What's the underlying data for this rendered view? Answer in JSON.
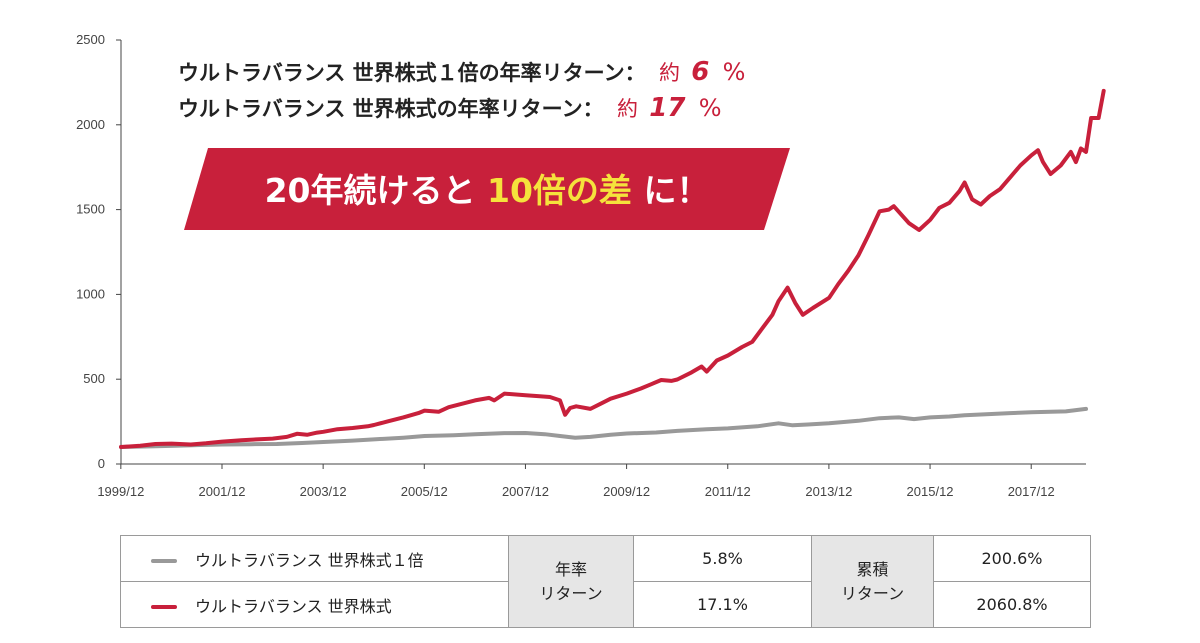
{
  "chart_data": {
    "type": "line",
    "x_ticks": [
      "1999/12",
      "2001/12",
      "2003/12",
      "2005/12",
      "2007/12",
      "2009/12",
      "2011/12",
      "2013/12",
      "2015/12",
      "2017/12"
    ],
    "y_ticks": [
      "0",
      "500",
      "1000",
      "1500",
      "2000",
      "2500"
    ],
    "ylim": [
      0,
      2500
    ],
    "xlim": [
      1999.92,
      2019.0
    ],
    "grid": false,
    "series": [
      {
        "name": "ウルトラバランス 世界株式１倍",
        "color": "#999999",
        "points": [
          [
            1999.92,
            100
          ],
          [
            2000.5,
            104
          ],
          [
            2001.0,
            108
          ],
          [
            2001.5,
            112
          ],
          [
            2001.92,
            115
          ],
          [
            2002.5,
            117
          ],
          [
            2003.0,
            118
          ],
          [
            2003.5,
            124
          ],
          [
            2003.92,
            130
          ],
          [
            2004.5,
            138
          ],
          [
            2004.92,
            145
          ],
          [
            2005.5,
            155
          ],
          [
            2005.92,
            165
          ],
          [
            2006.5,
            170
          ],
          [
            2006.92,
            175
          ],
          [
            2007.5,
            182
          ],
          [
            2007.92,
            183
          ],
          [
            2008.3,
            176
          ],
          [
            2008.6,
            165
          ],
          [
            2008.9,
            155
          ],
          [
            2009.2,
            160
          ],
          [
            2009.6,
            172
          ],
          [
            2009.92,
            180
          ],
          [
            2010.5,
            186
          ],
          [
            2010.92,
            195
          ],
          [
            2011.5,
            205
          ],
          [
            2011.92,
            210
          ],
          [
            2012.5,
            222
          ],
          [
            2012.92,
            240
          ],
          [
            2013.2,
            228
          ],
          [
            2013.5,
            233
          ],
          [
            2013.92,
            240
          ],
          [
            2014.5,
            255
          ],
          [
            2014.92,
            270
          ],
          [
            2015.3,
            275
          ],
          [
            2015.6,
            265
          ],
          [
            2015.92,
            275
          ],
          [
            2016.3,
            280
          ],
          [
            2016.6,
            288
          ],
          [
            2016.92,
            292
          ],
          [
            2017.5,
            300
          ],
          [
            2017.92,
            305
          ],
          [
            2018.3,
            308
          ],
          [
            2018.6,
            310
          ],
          [
            2018.8,
            318
          ],
          [
            2019.0,
            325
          ]
        ]
      },
      {
        "name": "ウルトラバランス 世界株式",
        "color": "#c8203b",
        "points": [
          [
            1999.92,
            100
          ],
          [
            2000.3,
            108
          ],
          [
            2000.6,
            118
          ],
          [
            2000.92,
            120
          ],
          [
            2001.3,
            115
          ],
          [
            2001.6,
            122
          ],
          [
            2001.92,
            132
          ],
          [
            2002.3,
            140
          ],
          [
            2002.6,
            145
          ],
          [
            2002.92,
            150
          ],
          [
            2003.2,
            160
          ],
          [
            2003.4,
            178
          ],
          [
            2003.6,
            172
          ],
          [
            2003.8,
            185
          ],
          [
            2003.92,
            190
          ],
          [
            2004.2,
            205
          ],
          [
            2004.5,
            212
          ],
          [
            2004.8,
            222
          ],
          [
            2004.92,
            230
          ],
          [
            2005.2,
            252
          ],
          [
            2005.5,
            275
          ],
          [
            2005.8,
            300
          ],
          [
            2005.92,
            315
          ],
          [
            2006.2,
            308
          ],
          [
            2006.4,
            335
          ],
          [
            2006.6,
            350
          ],
          [
            2006.92,
            375
          ],
          [
            2007.2,
            390
          ],
          [
            2007.3,
            375
          ],
          [
            2007.5,
            415
          ],
          [
            2007.92,
            405
          ],
          [
            2008.2,
            400
          ],
          [
            2008.4,
            395
          ],
          [
            2008.6,
            375
          ],
          [
            2008.7,
            290
          ],
          [
            2008.8,
            330
          ],
          [
            2008.92,
            340
          ],
          [
            2009.2,
            325
          ],
          [
            2009.4,
            355
          ],
          [
            2009.6,
            385
          ],
          [
            2009.92,
            415
          ],
          [
            2010.2,
            445
          ],
          [
            2010.4,
            470
          ],
          [
            2010.6,
            495
          ],
          [
            2010.8,
            490
          ],
          [
            2010.92,
            498
          ],
          [
            2011.2,
            540
          ],
          [
            2011.4,
            575
          ],
          [
            2011.5,
            545
          ],
          [
            2011.7,
            610
          ],
          [
            2011.92,
            640
          ],
          [
            2012.2,
            690
          ],
          [
            2012.4,
            720
          ],
          [
            2012.6,
            800
          ],
          [
            2012.8,
            880
          ],
          [
            2012.92,
            960
          ],
          [
            2013.1,
            1040
          ],
          [
            2013.25,
            950
          ],
          [
            2013.4,
            880
          ],
          [
            2013.6,
            920
          ],
          [
            2013.92,
            980
          ],
          [
            2014.1,
            1060
          ],
          [
            2014.3,
            1140
          ],
          [
            2014.5,
            1230
          ],
          [
            2014.7,
            1350
          ],
          [
            2014.92,
            1490
          ],
          [
            2015.1,
            1500
          ],
          [
            2015.2,
            1520
          ],
          [
            2015.35,
            1470
          ],
          [
            2015.5,
            1420
          ],
          [
            2015.7,
            1380
          ],
          [
            2015.92,
            1440
          ],
          [
            2016.1,
            1510
          ],
          [
            2016.3,
            1540
          ],
          [
            2016.5,
            1610
          ],
          [
            2016.6,
            1660
          ],
          [
            2016.75,
            1560
          ],
          [
            2016.92,
            1530
          ],
          [
            2017.1,
            1580
          ],
          [
            2017.3,
            1620
          ],
          [
            2017.5,
            1690
          ],
          [
            2017.7,
            1760
          ],
          [
            2017.92,
            1820
          ],
          [
            2018.05,
            1850
          ],
          [
            2018.15,
            1780
          ],
          [
            2018.3,
            1710
          ],
          [
            2018.5,
            1760
          ],
          [
            2018.7,
            1840
          ],
          [
            2018.8,
            1780
          ],
          [
            2018.9,
            1860
          ],
          [
            2019.0,
            1840
          ],
          [
            2019.1,
            2040
          ],
          [
            2019.25,
            2040
          ],
          [
            2019.35,
            2200
          ]
        ]
      }
    ],
    "annotations": {
      "line1_label": "ウルトラバランス 世界株式１倍の年率リターン：",
      "line1_prefix": "約",
      "line1_value": "6",
      "line1_unit": "%",
      "line2_label": "ウルトラバランス 世界株式の年率リターン：",
      "line2_prefix": "約",
      "line2_value": "17",
      "line2_unit": "%",
      "banner_part1": "20年続けると",
      "banner_highlight": "10倍の差",
      "banner_part2": "に！"
    }
  },
  "summary_table": {
    "annual_return_label": "年率\nリターン",
    "cumulative_return_label": "累積\nリターン",
    "rows": [
      {
        "series": "ウルトラバランス 世界株式１倍",
        "color": "#999999",
        "annual": "5.8%",
        "cumulative": "200.6%"
      },
      {
        "series": "ウルトラバランス 世界株式",
        "color": "#c8203b",
        "annual": "17.1%",
        "cumulative": "2060.8%"
      }
    ]
  }
}
